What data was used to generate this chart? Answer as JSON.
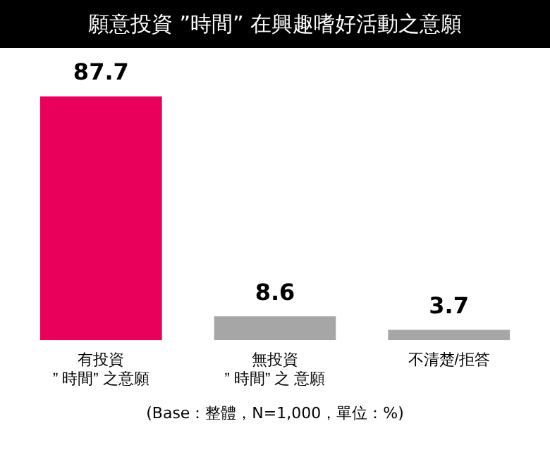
{
  "chart_data": {
    "type": "bar",
    "title": "願意投資 ”時間” 在興趣嗜好活動之意願",
    "categories": [
      "有投資\n” 時間” 之意願",
      "無投資\n” 時間” 之 意願",
      "不清楚/拒答"
    ],
    "values": [
      87.7,
      8.6,
      3.7
    ],
    "colors": [
      "#e8005a",
      "#a6a6a6",
      "#a6a6a6"
    ],
    "data_labels": true,
    "grid": false,
    "legend": false,
    "annotations": [
      "(Base：整體，N=1,000，單位：%)"
    ]
  }
}
